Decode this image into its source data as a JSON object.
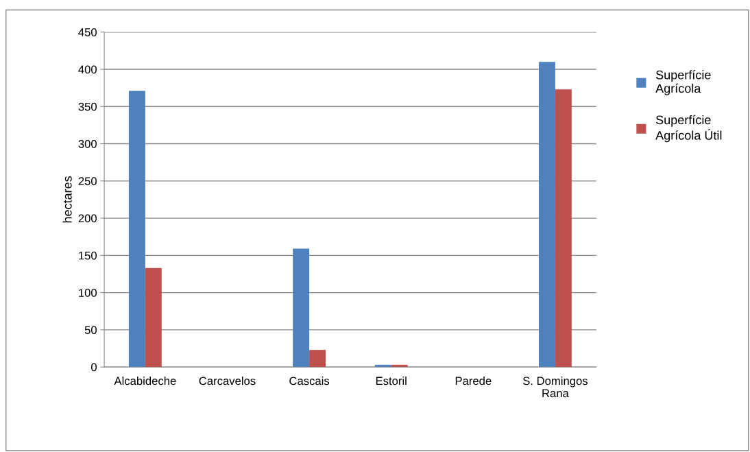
{
  "chart_data": {
    "type": "bar",
    "ylabel": "hectares",
    "categories": [
      "Alcabideche",
      "Carcavelos",
      "Cascais",
      "Estoril",
      "Parede",
      "S. Domingos\nRana"
    ],
    "series": [
      {
        "name": "Superfície\nAgrícola",
        "color": "#4f81bd",
        "values": [
          371,
          0,
          159,
          3,
          0,
          410
        ]
      },
      {
        "name": "Superfície\nAgrícola Útil",
        "color": "#c0504d",
        "values": [
          133,
          0,
          23,
          3,
          0,
          373
        ]
      }
    ],
    "ylim": [
      0,
      450
    ],
    "yticks": [
      0,
      50,
      100,
      150,
      200,
      250,
      300,
      350,
      400,
      450
    ],
    "grid": "y",
    "legend": "right"
  }
}
